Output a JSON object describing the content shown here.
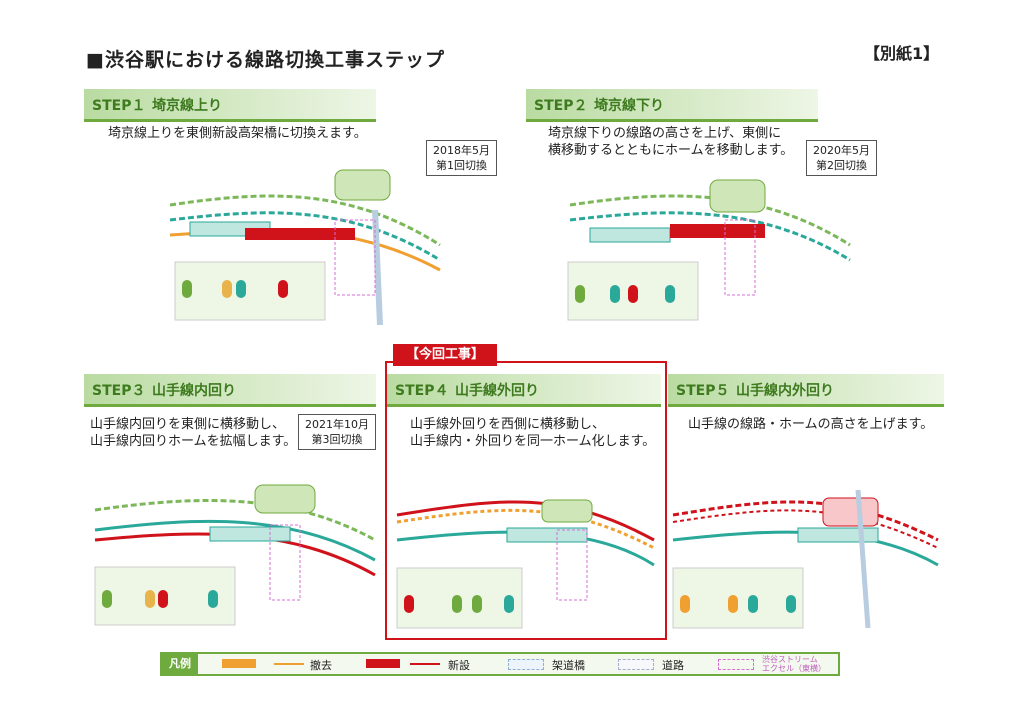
{
  "title": "■渋谷駅における線路切換工事ステップ",
  "attachment": "【別紙1】",
  "current_tag": "【今回工事】",
  "steps": [
    {
      "num": "STEP１",
      "name": "埼京線上り",
      "desc": [
        "埼京線上りを東側新設高架橋に切換えます。"
      ],
      "date": [
        "2018年5月",
        "第1回切換"
      ]
    },
    {
      "num": "STEP２",
      "name": "埼京線下り",
      "desc": [
        "埼京線下りの線路の高さを上げ、東側に",
        "横移動するとともにホームを移動します。"
      ],
      "date": [
        "2020年5月",
        "第2回切換"
      ]
    },
    {
      "num": "STEP３",
      "name": "山手線内回り",
      "desc": [
        "山手線内回りを東側に横移動し、",
        "山手線内回りホームを拡幅します。"
      ],
      "date": [
        "2021年10月",
        "第3回切換"
      ]
    },
    {
      "num": "STEP４",
      "name": "山手線外回り",
      "desc": [
        "山手線外回りを西側に横移動し、",
        "山手線内・外回りを同一ホーム化します。"
      ]
    },
    {
      "num": "STEP５",
      "name": "山手線内外回り",
      "desc": [
        "山手線の線路・ホームの高さを上げます。"
      ]
    }
  ],
  "legend": {
    "label": "凡例",
    "items": [
      "撤去",
      "新設",
      "架道橋",
      "道路",
      "渋谷ストリーム\nエクセル（東横）"
    ]
  },
  "colors": {
    "green": "#6faa3e",
    "red": "#d0121b",
    "orange": "#f0a030",
    "teal": "#2aa89a"
  }
}
